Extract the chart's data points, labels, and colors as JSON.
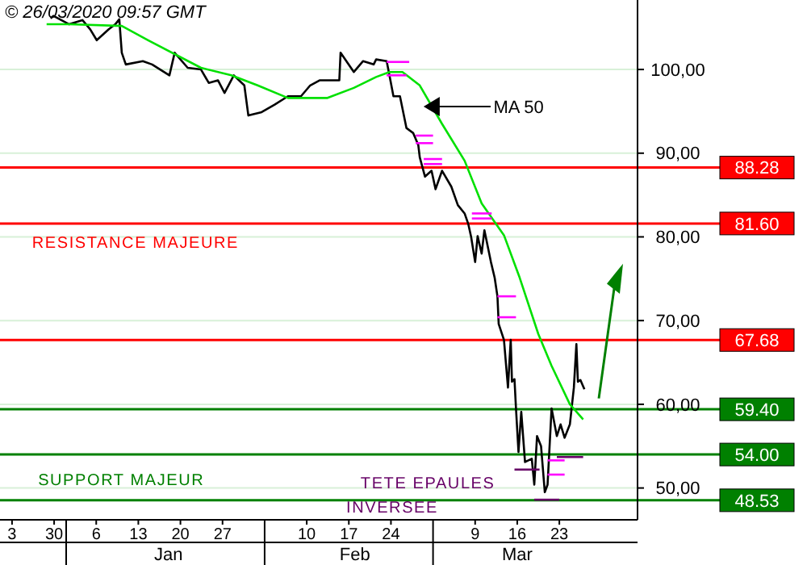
{
  "chart_data": {
    "type": "line",
    "title": "© 26/03/2020 09:57 GMT",
    "xlim": [
      "2019-12-21",
      "2020-04-05"
    ],
    "xticks": [
      {
        "value": "2019-12-23",
        "label": "3"
      },
      {
        "value": "2019-12-30",
        "label": "30"
      },
      {
        "value": "2020-01-06",
        "label": "6"
      },
      {
        "value": "2020-01-13",
        "label": "13"
      },
      {
        "value": "2020-01-20",
        "label": "20"
      },
      {
        "value": "2020-01-27",
        "label": "27"
      },
      {
        "value": "2020-02-10",
        "label": "10"
      },
      {
        "value": "2020-02-17",
        "label": "17"
      },
      {
        "value": "2020-02-24",
        "label": "24"
      },
      {
        "value": "2020-03-09",
        "label": "9"
      },
      {
        "value": "2020-03-16",
        "label": "16"
      },
      {
        "value": "2020-03-23",
        "label": "23"
      }
    ],
    "x2lim": [
      "2019-12-21",
      "2020-04-05"
    ],
    "x2ticks": [
      {
        "value": "2020-01-01",
        "label": null
      },
      {
        "value": "2020-01-18",
        "label": "Jan"
      },
      {
        "value": "2020-02-03",
        "label": null
      },
      {
        "value": "2020-02-18",
        "label": "Feb"
      },
      {
        "value": "2020-03-02",
        "label": null
      },
      {
        "value": "2020-03-16",
        "label": "Mar"
      }
    ],
    "ylim": [
      46.2,
      108.3
    ],
    "yticks": [
      {
        "value": 50,
        "label": "50,00"
      },
      {
        "value": 60,
        "label": "60,00"
      },
      {
        "value": 70,
        "label": "70,00"
      },
      {
        "value": 80,
        "label": "80,00"
      },
      {
        "value": 90,
        "label": "90,00"
      },
      {
        "value": 100,
        "label": "100,00"
      }
    ],
    "grid": "y",
    "line_style": "solid",
    "series": [
      {
        "color": "#000000",
        "x": [
          "2019-12-29T10:00",
          "2019-12-29T21:00",
          "2020-01-01T12:00",
          "2020-01-03T17:00",
          "2020-01-05T00:00",
          "2020-01-06T02:00",
          "2020-01-08T02:00",
          "2020-01-09T04:00",
          "2020-01-09T20:00",
          "2020-01-10T06:00",
          "2020-01-10T22:00",
          "2020-01-13T18:00",
          "2020-01-15T07:00",
          "2020-01-18T04:00",
          "2020-01-19T01:00",
          "2020-01-21T05:00",
          "2020-01-23T10:00",
          "2020-01-24T17:00",
          "2020-01-26T06:00",
          "2020-01-27T08:00",
          "2020-01-28T21:00",
          "2020-01-30T15:00",
          "2020-01-31T07:00",
          "2020-02-02T12:00",
          "2020-02-04T16:00",
          "2020-02-06T21:00",
          "2020-02-09T01:00",
          "2020-02-10T14:00",
          "2020-02-12T03:00",
          "2020-02-15T10:00",
          "2020-02-15T15:00",
          "2020-02-17T20:00",
          "2020-02-19T09:00",
          "2020-02-21T03:00",
          "2020-02-21T13:00",
          "2020-02-23T07:00",
          "2020-02-23T18:00",
          "2020-02-24T10:00",
          "2020-02-25T12:00",
          "2020-02-26T14:00",
          "2020-02-27T17:00",
          "2020-02-28T13:00",
          "2020-02-28T19:00",
          "2020-02-29T16:00",
          "2020-03-01T18:00",
          "2020-03-02T10:00",
          "2020-03-03T12:00",
          "2020-03-05T01:00",
          "2020-03-06T03:00",
          "2020-03-07T06:00",
          "2020-03-07T21:00",
          "2020-03-08T08:00",
          "2020-03-09T00:00",
          "2020-03-09T10:00",
          "2020-03-10T02:00",
          "2020-03-10T13:00",
          "2020-03-11T15:00",
          "2020-03-12T06:00",
          "2020-03-12T17:00",
          "2020-03-12T22:00",
          "2020-03-13T19:00",
          "2020-03-14T11:00",
          "2020-03-14T22:00",
          "2020-03-15T03:00",
          "2020-03-15T13:00",
          "2020-03-15T19:00",
          "2020-03-16T05:00",
          "2020-03-16T16:00",
          "2020-03-17T07:00",
          "2020-03-18T10:00",
          "2020-03-18T20:00",
          "2020-03-19T07:00",
          "2020-03-19T23:00",
          "2020-03-20T14:00",
          "2020-03-21T01:00",
          "2020-03-21T17:00",
          "2020-03-22T14:00",
          "2020-03-23T05:00",
          "2020-03-23T21:00",
          "2020-03-24T18:00",
          "2020-03-25T10:00",
          "2020-03-25T20:00",
          "2020-03-26T02:00",
          "2020-03-26T12:00",
          "2020-03-27T04:00"
        ],
        "values": [
          106.1,
          106.4,
          105.4,
          105.9,
          104.8,
          103.5,
          104.8,
          105.4,
          106,
          102,
          100.6,
          101,
          100.6,
          99.3,
          102,
          100.2,
          100,
          98.4,
          98.7,
          97.2,
          99.3,
          98.1,
          94.5,
          94.9,
          95.8,
          96.8,
          96.8,
          98.1,
          98.7,
          98.7,
          102,
          99.7,
          101,
          100.6,
          101.2,
          101,
          99.3,
          96.8,
          96.8,
          93,
          92.4,
          91,
          89.5,
          87.2,
          87.9,
          85.7,
          87.9,
          86,
          83.8,
          82.8,
          81.5,
          80,
          77,
          80.1,
          78,
          80.8,
          77,
          75.1,
          72.9,
          69.6,
          67.7,
          62,
          67.7,
          62.7,
          63,
          59.5,
          54.3,
          59.1,
          53.1,
          53.5,
          50.4,
          56.2,
          55,
          49.5,
          50.4,
          59.5,
          56.2,
          57.6,
          56,
          57.6,
          62,
          67.2,
          62.7,
          62.9,
          61.8
        ]
      },
      {
        "color": "#00e000",
        "x": [
          "2019-12-28T18:00",
          "2020-01-01T12:00",
          "2020-01-10T06:00",
          "2020-01-14T15:00",
          "2020-01-23T10:00",
          "2020-01-28T11:00",
          "2020-02-01T20:00",
          "2020-02-06T21:00",
          "2020-02-13T11:00",
          "2020-02-17T20:00",
          "2020-02-21T13:00",
          "2020-02-23T18:00",
          "2020-02-25T22:00",
          "2020-02-28T19:00",
          "2020-03-03T12:00",
          "2020-03-07T06:00",
          "2020-03-10T02:00",
          "2020-03-13T19:00",
          "2020-03-16T10:00",
          "2020-03-19T12:00",
          "2020-03-21T17:00",
          "2020-03-24T18:00",
          "2020-03-26T23:00"
        ],
        "values": [
          105.4,
          105.4,
          105.2,
          103.5,
          100.2,
          99.3,
          98.1,
          96.6,
          96.6,
          97.8,
          99.1,
          99.7,
          99.7,
          98.1,
          93.5,
          89.1,
          84,
          80.2,
          75.1,
          68.4,
          64.6,
          60,
          58.2
        ]
      },
      {
        "color": "#ff00ff",
        "x": [
          "2020-02-23T07:00",
          "2020-02-27T01:00"
        ],
        "values": [
          100.9,
          100.9
        ]
      },
      {
        "color": "#ff00ff",
        "x": [
          "2020-02-23T07:00",
          "2020-02-26T14:00"
        ],
        "values": [
          99.3,
          99.3
        ]
      },
      {
        "color": "#ff00ff",
        "x": [
          "2020-02-28T03:00",
          "2020-03-02T00:00"
        ],
        "values": [
          92.1,
          92.1
        ]
      },
      {
        "color": "#ff00ff",
        "x": [
          "2020-02-28T03:00",
          "2020-03-02T00:00"
        ],
        "values": [
          91.2,
          91.2
        ]
      },
      {
        "color": "#ff00ff",
        "x": [
          "2020-02-29T11:00",
          "2020-03-03T12:00"
        ],
        "values": [
          89.3,
          89.3
        ]
      },
      {
        "color": "#ff00ff",
        "x": [
          "2020-02-29T11:00",
          "2020-03-03T12:00"
        ],
        "values": [
          88.7,
          88.7
        ]
      },
      {
        "color": "#ff00ff",
        "x": [
          "2020-03-08T11:00",
          "2020-03-11T18:00"
        ],
        "values": [
          82.8,
          82.8
        ]
      },
      {
        "color": "#ff00ff",
        "x": [
          "2020-03-08T11:00",
          "2020-03-11T18:00"
        ],
        "values": [
          82.2,
          82.2
        ]
      },
      {
        "color": "#ff00ff",
        "x": [
          "2020-03-12T17:00",
          "2020-03-15T19:00"
        ],
        "values": [
          72.9,
          72.9
        ]
      },
      {
        "color": "#ff00ff",
        "x": [
          "2020-03-12T17:00",
          "2020-03-15T19:00"
        ],
        "values": [
          70.4,
          70.4
        ]
      },
      {
        "color": "#ff00ff",
        "x": [
          "2020-03-21T01:00",
          "2020-03-23T21:00"
        ],
        "values": [
          53.3,
          53.3
        ]
      },
      {
        "color": "#ff00ff",
        "x": [
          "2020-03-21T01:00",
          "2020-03-23T21:00"
        ],
        "values": [
          51.6,
          51.6
        ]
      },
      {
        "color": "#660066",
        "x": [
          "2020-03-15T13:00",
          "2020-03-19T17:00"
        ],
        "values": [
          52.2,
          52.2
        ]
      },
      {
        "color": "#660066",
        "x": [
          "2020-03-18T20:00",
          "2020-03-23T00:00"
        ],
        "values": [
          48.6,
          48.6
        ]
      },
      {
        "color": "#660066",
        "x": [
          "2020-03-22T14:00",
          "2020-03-26T23:00"
        ],
        "values": [
          53.7,
          53.7
        ]
      }
    ],
    "ref_lines": [
      {
        "axis": "y",
        "value": 88.28,
        "label": "88.28",
        "color": "#ff0000"
      },
      {
        "axis": "y",
        "value": 81.6,
        "label": "81.60",
        "color": "#ff0000"
      },
      {
        "axis": "y",
        "value": 67.68,
        "label": "67.68",
        "color": "#ff0000"
      },
      {
        "axis": "y",
        "value": 59.4,
        "label": "59.40",
        "color": "#008000"
      },
      {
        "axis": "y",
        "value": 54,
        "label": "54.00",
        "color": "#008000"
      },
      {
        "axis": "y",
        "value": 48.53,
        "label": "48.53",
        "color": "#008000"
      }
    ],
    "annotations": [
      "MA 50",
      "RESISTANCE MAJEURE",
      "SUPPORT MAJEUR",
      "TETE EPAULES",
      "INVERSEE"
    ]
  }
}
